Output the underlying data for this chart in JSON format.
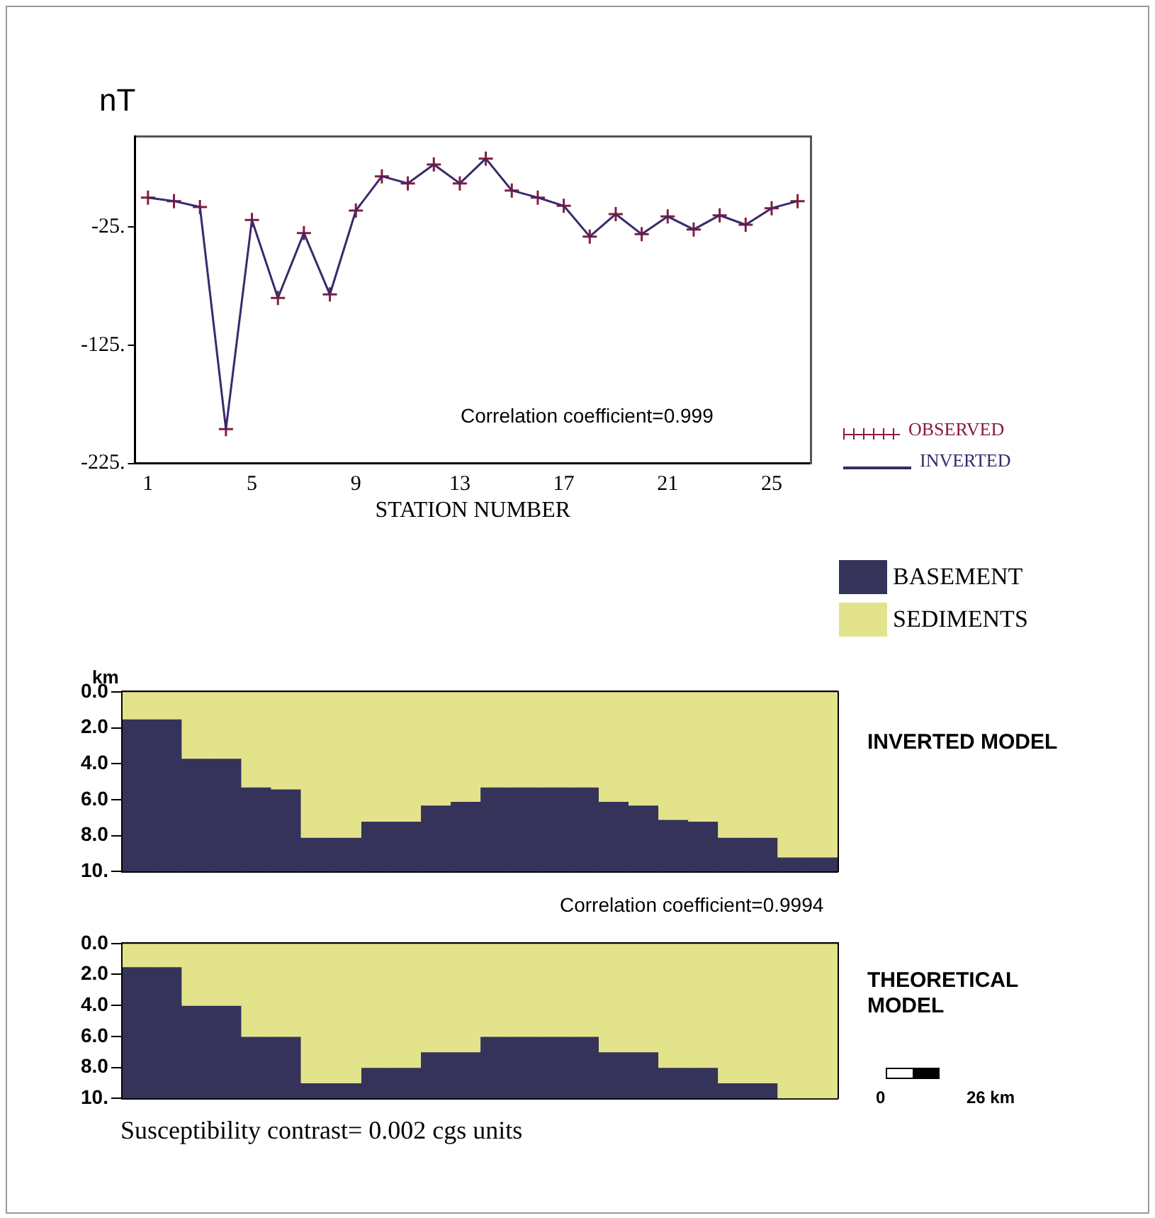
{
  "chart_data": [
    {
      "type": "line",
      "ylabel": "nT",
      "xlabel": "STATION NUMBER",
      "annotations": [
        "Correlation coefficient=0.999"
      ],
      "legend": "right",
      "grid": false,
      "x": [
        1,
        2,
        3,
        4,
        5,
        6,
        7,
        8,
        9,
        10,
        11,
        12,
        13,
        14,
        15,
        16,
        17,
        18,
        19,
        20,
        21,
        22,
        23,
        24,
        25,
        26
      ],
      "xlim": [
        0.5,
        26.5
      ],
      "xticks": [
        1,
        5,
        9,
        13,
        17,
        21,
        25
      ],
      "ylim": [
        -225,
        52
      ],
      "yticks": [
        {
          "value": -25,
          "label": "-25."
        },
        {
          "value": -125,
          "label": "-125."
        },
        {
          "value": -225,
          "label": "-225."
        }
      ],
      "series": [
        {
          "name": "OBSERVED",
          "type": "scatter",
          "color": "#8b1a3a",
          "marker": "cross",
          "values": [
            0,
            -3,
            -8,
            -196,
            -19,
            -85,
            -30,
            -82,
            -11,
            18,
            12,
            28,
            12,
            33,
            6,
            0,
            -7,
            -33,
            -14,
            -31,
            -16,
            -27,
            -15,
            -23,
            -9,
            -3
          ]
        },
        {
          "name": "INVERTED",
          "color": "#3a2a6a",
          "marker": "none",
          "line_style": "solid",
          "values": [
            0,
            -3,
            -8,
            -196,
            -19,
            -85,
            -30,
            -82,
            -11,
            18,
            12,
            28,
            12,
            33,
            6,
            0,
            -7,
            -33,
            -14,
            -31,
            -16,
            -27,
            -15,
            -23,
            -9,
            -3
          ]
        }
      ]
    },
    {
      "type": "bar",
      "ylabel": "km",
      "stacked": true,
      "legend": "top right",
      "grid": false,
      "annotations": [
        "INVERTED MODEL",
        "Correlation coefficient=0.9994"
      ],
      "categories": [
        null,
        null,
        null,
        null,
        null,
        null,
        null,
        null,
        null,
        null,
        null,
        null,
        null,
        null,
        null,
        null,
        null,
        null,
        null,
        null,
        null,
        null,
        null,
        null
      ],
      "ylim": [
        10,
        0
      ],
      "yticks": [
        {
          "value": 0,
          "label": "0.0"
        },
        {
          "value": 2,
          "label": "2.0"
        },
        {
          "value": 4,
          "label": "4.0"
        },
        {
          "value": 6,
          "label": "6.0"
        },
        {
          "value": 8,
          "label": "8.0"
        },
        {
          "value": 10,
          "label": "10."
        }
      ],
      "series": [
        {
          "name": "SEDIMENTS",
          "color": "#e3e38c",
          "values": [
            1.5,
            1.5,
            3.7,
            3.7,
            5.3,
            5.4,
            8.1,
            8.1,
            7.2,
            7.2,
            6.3,
            6.1,
            5.3,
            5.3,
            5.3,
            5.3,
            6.1,
            6.3,
            7.1,
            7.2,
            8.1,
            8.1,
            9.2,
            9.2
          ]
        },
        {
          "name": "BASEMENT",
          "color": "#35335a",
          "values": [
            8.5,
            8.5,
            6.3,
            6.3,
            4.7,
            4.6,
            1.9,
            1.9,
            2.8,
            2.8,
            3.7,
            3.9,
            4.7,
            4.7,
            4.7,
            4.7,
            3.9,
            3.7,
            2.9,
            2.8,
            1.9,
            1.9,
            0.8,
            0.8
          ]
        }
      ]
    },
    {
      "type": "bar",
      "stacked": true,
      "grid": false,
      "annotations": [
        "THEORETICAL MODEL",
        "Susceptibility contrast=  0.002  cgs units",
        "0",
        "26 km"
      ],
      "categories": [
        null,
        null,
        null,
        null,
        null,
        null,
        null,
        null,
        null,
        null,
        null,
        null,
        null,
        null,
        null,
        null,
        null,
        null,
        null,
        null,
        null,
        null,
        null,
        null
      ],
      "ylim": [
        10,
        0
      ],
      "yticks": [
        {
          "value": 0,
          "label": "0.0"
        },
        {
          "value": 2,
          "label": "2.0"
        },
        {
          "value": 4,
          "label": "4.0"
        },
        {
          "value": 6,
          "label": "6.0"
        },
        {
          "value": 8,
          "label": "8.0"
        },
        {
          "value": 10,
          "label": "10."
        }
      ],
      "series": [
        {
          "color": "#e3e38c",
          "values": [
            1.5,
            1.5,
            4,
            4,
            6,
            6,
            9,
            9,
            8,
            8,
            7,
            7,
            6,
            6,
            6,
            6,
            7,
            7,
            8,
            8,
            9,
            9,
            10,
            10
          ]
        },
        {
          "color": "#35335a",
          "values": [
            8.5,
            8.5,
            6,
            6,
            4,
            4,
            1,
            1,
            2,
            2,
            3,
            3,
            4,
            4,
            4,
            4,
            3,
            3,
            2,
            2,
            1,
            1,
            0,
            0
          ]
        }
      ]
    }
  ]
}
